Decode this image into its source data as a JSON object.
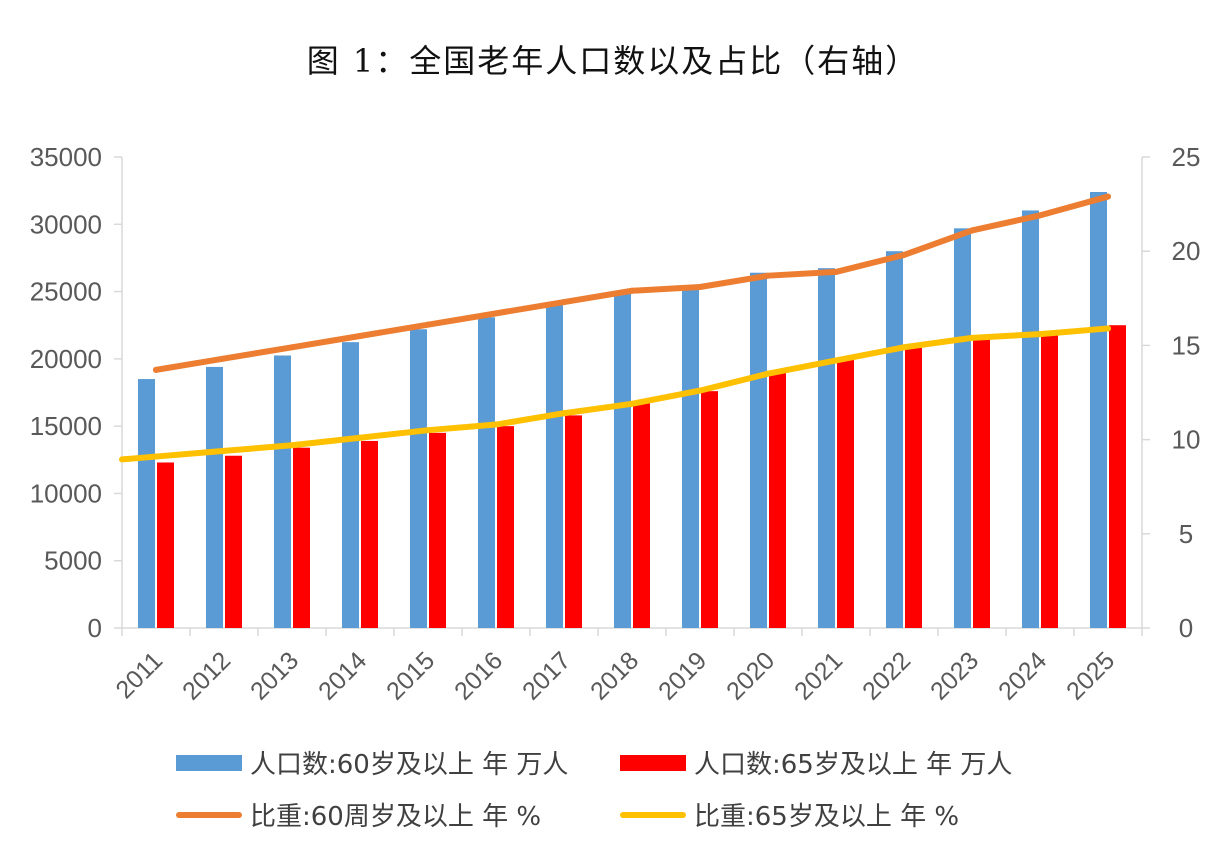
{
  "title": "图 1：全国老年人口数以及占比（右轴）",
  "colors": {
    "pop60": "#5B9BD5",
    "pop65": "#FF0000",
    "ratio60": "#ED7D31",
    "ratio65": "#FFC000",
    "axis": "#D9D9D9"
  },
  "legend": {
    "pop60": "人口数:60岁及以上 年 万人",
    "pop65": "人口数:65岁及以上 年 万人",
    "ratio60": "比重:60周岁及以上 年 %",
    "ratio65": "比重:65岁及以上 年 %"
  },
  "chart_data": {
    "type": "bar+line",
    "title": "图 1：全国老年人口数以及占比（右轴）",
    "categories": [
      "2011",
      "2012",
      "2013",
      "2014",
      "2015",
      "2016",
      "2017",
      "2018",
      "2019",
      "2020",
      "2021",
      "2022",
      "2023",
      "2024",
      "2025"
    ],
    "y_left": {
      "min": 0,
      "max": 35000,
      "ticks": [
        0,
        5000,
        10000,
        15000,
        20000,
        25000,
        30000,
        35000
      ]
    },
    "y_right": {
      "min": 0,
      "max": 25,
      "ticks": [
        0,
        5,
        10,
        15,
        20,
        25
      ]
    },
    "bar_series": [
      {
        "key": "pop60",
        "name": "人口数:60岁及以上 年 万人",
        "axis": "left",
        "values": [
          18500,
          19400,
          20250,
          21240,
          22200,
          23090,
          24090,
          24950,
          25390,
          26400,
          26740,
          28000,
          29700,
          31030,
          32400
        ]
      },
      {
        "key": "pop65",
        "name": "人口数:65岁及以上 年 万人",
        "axis": "left",
        "values": [
          12300,
          12800,
          13400,
          13900,
          14500,
          15000,
          15800,
          16700,
          17600,
          19000,
          20050,
          20980,
          21680,
          22020,
          22500
        ]
      }
    ],
    "line_series": [
      {
        "key": "ratio60",
        "name": "比重:60周岁及以上 年 %",
        "axis": "right",
        "values": [
          13.7,
          14.3,
          14.9,
          15.5,
          16.1,
          16.7,
          17.3,
          17.9,
          18.1,
          18.7,
          18.9,
          19.8,
          21.1,
          21.9,
          22.9
        ]
      },
      {
        "key": "ratio65",
        "name": "比重:65岁及以上 年 %",
        "axis": "right",
        "values": [
          9.1,
          9.4,
          9.7,
          10.1,
          10.5,
          10.8,
          11.4,
          11.9,
          12.6,
          13.5,
          14.2,
          14.9,
          15.4,
          15.6,
          15.9
        ]
      }
    ]
  }
}
